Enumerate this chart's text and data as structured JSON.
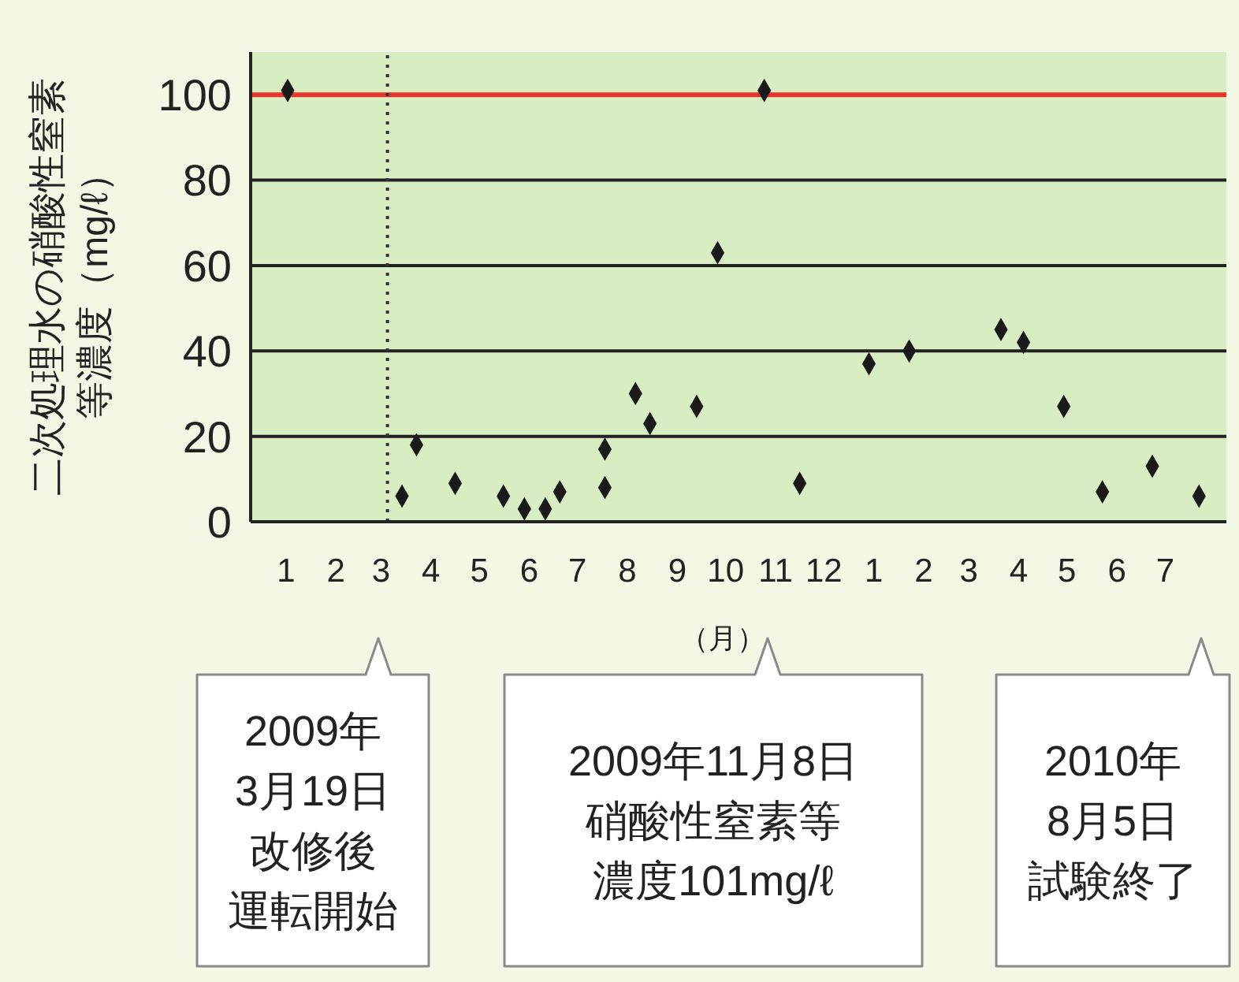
{
  "chart_data": {
    "type": "scatter",
    "ylabel": "二次処理水の硝酸性窒素等濃度（mg/ℓ）",
    "xlabel": "（月）",
    "x": [
      "2009-01-16",
      "2009-03-28",
      "2009-04-06",
      "2009-04-30",
      "2009-05-30",
      "2009-06-12",
      "2009-06-25",
      "2009-07-04",
      "2009-08-01",
      "2009-08-01",
      "2009-08-20",
      "2009-08-29",
      "2009-09-27",
      "2009-10-10",
      "2009-11-08",
      "2009-11-30",
      "2010-01-12",
      "2010-02-06",
      "2010-04-04",
      "2010-04-18",
      "2010-05-13",
      "2010-06-06",
      "2010-07-07",
      "2010-08-05"
    ],
    "series": [
      {
        "color": "#1a1a1a",
        "values": [
          101,
          6,
          18,
          9,
          6,
          3,
          3,
          7,
          17,
          8,
          30,
          23,
          27,
          63,
          101,
          9,
          37,
          40,
          45,
          42,
          27,
          7,
          13,
          6
        ]
      }
    ],
    "marker": "diamond",
    "grid": "y",
    "xlim": [
      "2008-12-24",
      "2010-08-22"
    ],
    "xticks": [
      {
        "value": "2009-01-15",
        "label": "1"
      },
      {
        "value": "2009-02-15",
        "label": "2"
      },
      {
        "value": "2009-03-15",
        "label": "3"
      },
      {
        "value": "2009-04-15",
        "label": "4"
      },
      {
        "value": "2009-05-15",
        "label": "5"
      },
      {
        "value": "2009-06-15",
        "label": "6"
      },
      {
        "value": "2009-07-15",
        "label": "7"
      },
      {
        "value": "2009-08-15",
        "label": "8"
      },
      {
        "value": "2009-09-15",
        "label": "9"
      },
      {
        "value": "2009-10-15",
        "label": "10"
      },
      {
        "value": "2009-11-15",
        "label": "11"
      },
      {
        "value": "2009-12-15",
        "label": "12"
      },
      {
        "value": "2010-01-15",
        "label": "1"
      },
      {
        "value": "2010-02-15",
        "label": "2"
      },
      {
        "value": "2010-03-15",
        "label": "3"
      },
      {
        "value": "2010-04-15",
        "label": "4"
      },
      {
        "value": "2010-05-15",
        "label": "5"
      },
      {
        "value": "2010-06-15",
        "label": "6"
      },
      {
        "value": "2010-07-15",
        "label": "7"
      }
    ],
    "ylim": [
      0,
      110
    ],
    "yticks": [
      0,
      20,
      40,
      60,
      80,
      100
    ],
    "ref_lines": [
      {
        "axis": "y",
        "value": 100,
        "color": "#e8322a",
        "line_style": "solid"
      },
      {
        "axis": "x",
        "value": "2009-03-19",
        "color": "#333333",
        "line_style": "dotted"
      }
    ],
    "annotations": [
      "2009年",
      "3月19日",
      "改修後",
      "運転開始",
      "2009年11月8日",
      "硝酸性窒素等",
      "濃度101mg/ℓ",
      "2010年",
      "8月5日",
      "試験終了"
    ]
  }
}
